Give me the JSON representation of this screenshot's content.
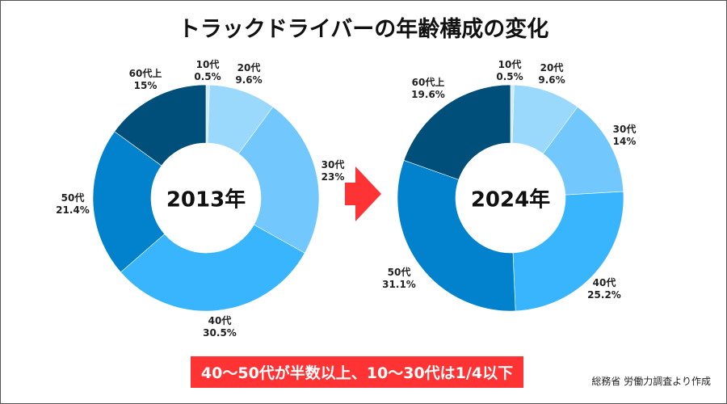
{
  "title": "トラックドライバーの年齢構成の変化",
  "chart_data": [
    {
      "type": "pie",
      "donut": true,
      "title": "2013年",
      "categories": [
        "10代",
        "20代",
        "30代",
        "40代",
        "50代",
        "60代上"
      ],
      "values": [
        0.5,
        9.6,
        23,
        30.5,
        21.4,
        15
      ],
      "labels": [
        "0.5%",
        "9.6%",
        "23%",
        "30.5%",
        "21.4%",
        "15%"
      ],
      "colors": [
        "#cdebfd",
        "#9ad9fc",
        "#72c8fc",
        "#39b5fd",
        "#0282cc",
        "#004f7a"
      ]
    },
    {
      "type": "pie",
      "donut": true,
      "title": "2024年",
      "categories": [
        "10代",
        "20代",
        "30代",
        "40代",
        "50代",
        "60代上"
      ],
      "values": [
        0.5,
        9.6,
        14,
        25.2,
        31.1,
        19.6
      ],
      "labels": [
        "0.5%",
        "9.6%",
        "14%",
        "25.2%",
        "31.1%",
        "19.6%"
      ],
      "colors": [
        "#cdebfd",
        "#9ad9fc",
        "#72c8fc",
        "#39b5fd",
        "#0282cc",
        "#004f7a"
      ]
    }
  ],
  "arrow_color": "#ff3333",
  "banner": "40～50代が半数以上、10～30代は1/4以下",
  "source": "総務省 労働力調査より作成"
}
